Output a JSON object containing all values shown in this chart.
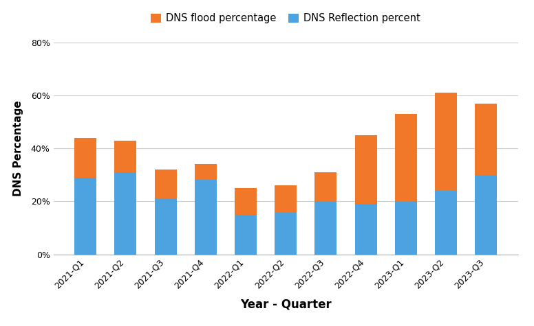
{
  "quarters": [
    "2021-Q1",
    "2021-Q2",
    "2021-Q3",
    "2021-Q4",
    "2022-Q1",
    "2022-Q2",
    "2022-Q3",
    "2022-Q4",
    "2023-Q1",
    "2023-Q2",
    "2023-Q3"
  ],
  "dns_reflection": [
    29,
    31,
    21,
    28,
    15,
    16,
    20,
    19,
    20,
    24,
    30
  ],
  "dns_flood": [
    15,
    12,
    11,
    6,
    10,
    10,
    11,
    26,
    33,
    37,
    27
  ],
  "reflection_color": "#4ca3e0",
  "flood_color": "#f07828",
  "background_color": "#ffffff",
  "xlabel": "Year - Quarter",
  "ylabel": "DNS Percentage",
  "legend_flood": "DNS flood percentage",
  "legend_reflection": "DNS Reflection percent",
  "ylim": [
    0,
    80
  ],
  "yticks": [
    0,
    20,
    40,
    60,
    80
  ],
  "ytick_labels": [
    "0%",
    "20%",
    "40%",
    "60%",
    "80%"
  ],
  "bar_width": 0.55,
  "grid_color": "#cccccc",
  "xlabel_fontsize": 12,
  "ylabel_fontsize": 11,
  "tick_fontsize": 9,
  "legend_fontsize": 10.5
}
